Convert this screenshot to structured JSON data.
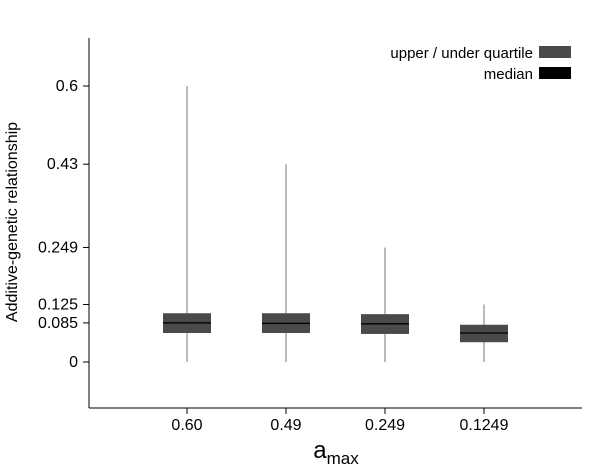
{
  "chart_data": {
    "type": "box",
    "xlabel": "a",
    "xlabel_subscript": "max",
    "ylabel": "Additive-genetic relationship",
    "ylim": [
      -0.1,
      0.7
    ],
    "yticks": [
      0,
      0.085,
      0.125,
      0.249,
      0.43,
      0.6
    ],
    "ytick_labels": [
      "0",
      "0.085",
      "0.125",
      "0.249",
      "0.43",
      "0.6"
    ],
    "categories": [
      "0.60",
      "0.49",
      "0.249",
      "0.1249"
    ],
    "boxes": [
      {
        "min": 0,
        "q1": 0.063,
        "median": 0.085,
        "q3": 0.106,
        "max": 0.6
      },
      {
        "min": 0,
        "q1": 0.063,
        "median": 0.084,
        "q3": 0.106,
        "max": 0.43
      },
      {
        "min": 0,
        "q1": 0.061,
        "median": 0.083,
        "q3": 0.104,
        "max": 0.249
      },
      {
        "min": 0,
        "q1": 0.043,
        "median": 0.063,
        "q3": 0.081,
        "max": 0.125
      }
    ],
    "legend": {
      "placement": "top-right",
      "items": [
        {
          "label": "upper / under quartile",
          "color": "#4a4a4a"
        },
        {
          "label": "median",
          "color": "#000000"
        }
      ]
    },
    "colors": {
      "box_fill": "#4a4a4a",
      "median_line": "#000000",
      "whisker": "#555555",
      "axis": "#000000"
    },
    "grid": false
  }
}
